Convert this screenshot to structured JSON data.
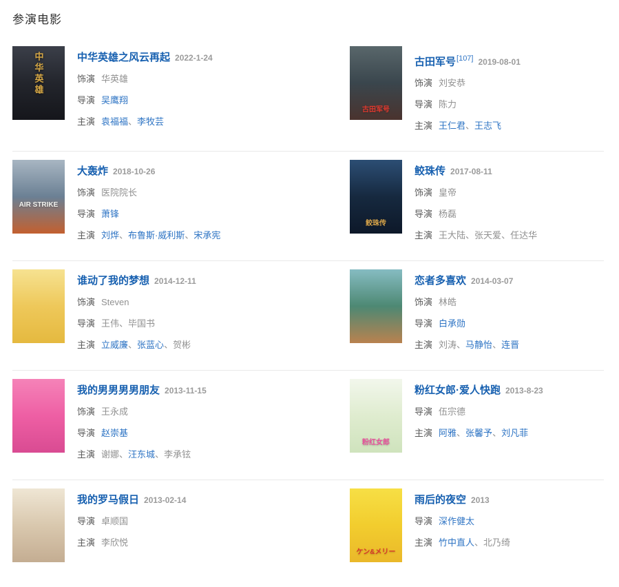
{
  "page": {
    "title": "参演电影"
  },
  "labels": {
    "separator": "、"
  },
  "colors": {
    "title_link": "#1760b0",
    "person_link": "#2e74c4",
    "plain_text": "#919191",
    "label_text": "#5a5a5a",
    "date_text": "#9b9b9b",
    "divider": "#e9e9e9"
  },
  "movies": [
    {
      "title": "中华英雄之风云再起",
      "ref": "",
      "date": "2022-1-24",
      "credit_lines": [
        {
          "label": "饰演",
          "people": [
            {
              "name": "华英雄",
              "link": false
            }
          ]
        },
        {
          "label": "导演",
          "people": [
            {
              "name": "吴鹰翔",
              "link": true
            }
          ]
        },
        {
          "label": "主演",
          "people": [
            {
              "name": "袁福福",
              "link": true
            },
            {
              "name": "李牧芸",
              "link": true
            }
          ]
        }
      ],
      "poster": {
        "colors": [
          "#3b3f49",
          "#23252c",
          "#15161b"
        ],
        "label": "中华英雄",
        "label_color": "#d4a645",
        "label_pos": "center",
        "vertical": true
      }
    },
    {
      "title": "古田军号",
      "ref": "[107]",
      "date": "2019-08-01",
      "credit_lines": [
        {
          "label": "饰演",
          "people": [
            {
              "name": "刘安恭",
              "link": false
            }
          ]
        },
        {
          "label": "导演",
          "people": [
            {
              "name": "陈力",
              "link": false
            }
          ]
        },
        {
          "label": "主演",
          "people": [
            {
              "name": "王仁君",
              "link": true
            },
            {
              "name": "王志飞",
              "link": true
            }
          ]
        }
      ],
      "poster": {
        "colors": [
          "#59676b",
          "#3a464d",
          "#4a332e"
        ],
        "label": "古田军号",
        "label_color": "#e0392e",
        "label_pos": "bottom",
        "vertical": false
      }
    },
    {
      "title": "大轰炸",
      "ref": "",
      "date": "2018-10-26",
      "credit_lines": [
        {
          "label": "饰演",
          "people": [
            {
              "name": "医院院长",
              "link": false
            }
          ]
        },
        {
          "label": "导演",
          "people": [
            {
              "name": "萧锋",
              "link": true
            }
          ]
        },
        {
          "label": "主演",
          "people": [
            {
              "name": "刘烨",
              "link": true
            },
            {
              "name": "布鲁斯·威利斯",
              "link": true
            },
            {
              "name": "宋承宪",
              "link": true
            }
          ]
        }
      ],
      "poster": {
        "colors": [
          "#a8b6c2",
          "#6b8094",
          "#c3602f"
        ],
        "label": "AIR STRIKE",
        "label_color": "#f2f2ee",
        "label_pos": "middle",
        "vertical": false
      }
    },
    {
      "title": "鲛珠传",
      "ref": "",
      "date": "2017-08-11",
      "credit_lines": [
        {
          "label": "饰演",
          "people": [
            {
              "name": "皇帝",
              "link": false
            }
          ]
        },
        {
          "label": "导演",
          "people": [
            {
              "name": "杨磊",
              "link": false
            }
          ]
        },
        {
          "label": "主演",
          "people": [
            {
              "name": "王大陆",
              "link": false
            },
            {
              "name": "张天爱",
              "link": false
            },
            {
              "name": "任达华",
              "link": false
            }
          ]
        }
      ],
      "poster": {
        "colors": [
          "#2c4e74",
          "#16293f",
          "#0d1829"
        ],
        "label": "鲛珠传",
        "label_color": "#d8a54b",
        "label_pos": "bottom",
        "vertical": false
      }
    },
    {
      "title": "谁动了我的梦想",
      "ref": "",
      "date": "2014-12-11",
      "credit_lines": [
        {
          "label": "饰演",
          "people": [
            {
              "name": "Steven",
              "link": false
            }
          ]
        },
        {
          "label": "导演",
          "people": [
            {
              "name": "王伟",
              "link": false
            },
            {
              "name": "毕国书",
              "link": false
            }
          ]
        },
        {
          "label": "主演",
          "people": [
            {
              "name": "立威廉",
              "link": true
            },
            {
              "name": "张蓝心",
              "link": true
            },
            {
              "name": "贺彬",
              "link": false
            }
          ]
        }
      ],
      "poster": {
        "colors": [
          "#f6e291",
          "#eec85a",
          "#e5b93f"
        ],
        "label": "",
        "label_color": "#ffffff",
        "label_pos": "center",
        "vertical": false
      }
    },
    {
      "title": "恋者多喜欢",
      "ref": "",
      "date": "2014-03-07",
      "credit_lines": [
        {
          "label": "饰演",
          "people": [
            {
              "name": "林皓",
              "link": false
            }
          ]
        },
        {
          "label": "导演",
          "people": [
            {
              "name": "白承勋",
              "link": true
            }
          ]
        },
        {
          "label": "主演",
          "people": [
            {
              "name": "刘涛",
              "link": false
            },
            {
              "name": "马静怡",
              "link": true
            },
            {
              "name": "连晋",
              "link": true
            }
          ]
        }
      ],
      "poster": {
        "colors": [
          "#86bcc2",
          "#4d8873",
          "#b9824f"
        ],
        "label": "",
        "label_color": "#ffffff",
        "label_pos": "center",
        "vertical": false
      }
    },
    {
      "title": "我的男男男男朋友",
      "ref": "",
      "date": "2013-11-15",
      "credit_lines": [
        {
          "label": "饰演",
          "people": [
            {
              "name": "王永成",
              "link": false
            }
          ]
        },
        {
          "label": "导演",
          "people": [
            {
              "name": "赵崇基",
              "link": true
            }
          ]
        },
        {
          "label": "主演",
          "people": [
            {
              "name": "谢娜",
              "link": false
            },
            {
              "name": "汪东城",
              "link": true
            },
            {
              "name": "李承铉",
              "link": false
            }
          ]
        }
      ],
      "poster": {
        "colors": [
          "#f583b8",
          "#ee5fa4",
          "#d94b92"
        ],
        "label": "",
        "label_color": "#ffffff",
        "label_pos": "center",
        "vertical": false
      }
    },
    {
      "title": "粉红女郎·爱人快跑",
      "ref": "",
      "date": "2013-8-23",
      "credit_lines": [
        {
          "label": "导演",
          "people": [
            {
              "name": "伍宗德",
              "link": false
            }
          ]
        },
        {
          "label": "主演",
          "people": [
            {
              "name": "阿雅",
              "link": true
            },
            {
              "name": "张馨予",
              "link": true
            },
            {
              "name": "刘凡菲",
              "link": true
            }
          ]
        }
      ],
      "poster": {
        "colors": [
          "#f2f7ec",
          "#dfeccf",
          "#cfe3bd"
        ],
        "label": "粉红女郎",
        "label_color": "#e84f9b",
        "label_pos": "bottom",
        "vertical": false
      }
    },
    {
      "title": "我的罗马假日",
      "ref": "",
      "date": "2013-02-14",
      "credit_lines": [
        {
          "label": "导演",
          "people": [
            {
              "name": "卓顺国",
              "link": false
            }
          ]
        },
        {
          "label": "主演",
          "people": [
            {
              "name": "李欣悦",
              "link": false
            }
          ]
        }
      ],
      "poster": {
        "colors": [
          "#efe6d4",
          "#d9c8ae",
          "#c4ad92"
        ],
        "label": "",
        "label_color": "#ffffff",
        "label_pos": "center",
        "vertical": false
      }
    },
    {
      "title": "雨后的夜空",
      "ref": "",
      "date": "2013",
      "credit_lines": [
        {
          "label": "导演",
          "people": [
            {
              "name": "深作健太",
              "link": true
            }
          ]
        },
        {
          "label": "主演",
          "people": [
            {
              "name": "竹中直人",
              "link": true
            },
            {
              "name": "北乃绮",
              "link": false
            }
          ]
        }
      ],
      "poster": {
        "colors": [
          "#f7df45",
          "#f2cd2e",
          "#eab82a"
        ],
        "label": "ケン&メリー",
        "label_color": "#d8362a",
        "label_pos": "bottom",
        "vertical": false
      }
    }
  ]
}
